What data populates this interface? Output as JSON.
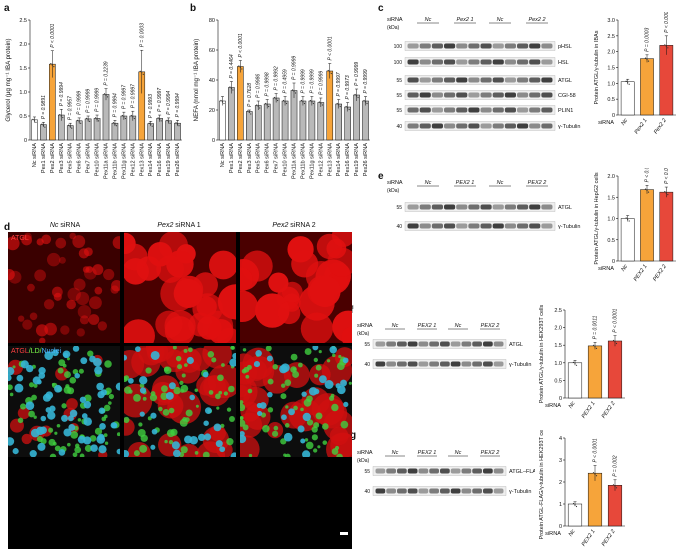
{
  "panel_letters": {
    "a": "a",
    "b": "b",
    "c": "c",
    "d": "d",
    "e": "e",
    "f": "f",
    "g": "g"
  },
  "colors": {
    "nc": "#ffffff",
    "pex": "#b9b9b9",
    "pex2": "#f6a43a",
    "pex2b": "#f2703a",
    "pex2c": "#e7483a"
  },
  "chart_data": [
    {
      "id": "a",
      "type": "bar",
      "ylabel": "Glycerol (μg mg⁻¹ IBA protein)",
      "ylim": [
        0,
        2.5
      ],
      "yticks": [
        "0",
        "0.5",
        "1.0",
        "1.5",
        "2.0",
        "2.5"
      ],
      "categories": [
        "Nc siRNA",
        "Pex1 siRNA",
        "Pex2 siRNA",
        "Pex3 siRNA",
        "Pex5 siRNA",
        "Pex6 siRNA",
        "Pex7 siRNA",
        "Pex10 siRNA",
        "Pex11a siRNA",
        "Pex11b siRNA",
        "Pex11g siRNA",
        "Pex12 siRNA",
        "Pex13 siRNA",
        "Pex14 siRNA",
        "Pex16 siRNA",
        "Pex19 siRNA",
        "Pex26 siRNA"
      ],
      "values": [
        0.42,
        0.32,
        1.58,
        0.52,
        0.3,
        0.4,
        0.44,
        0.45,
        0.95,
        0.35,
        0.5,
        0.5,
        1.42,
        0.34,
        0.45,
        0.4,
        0.35
      ],
      "errors": [
        0.06,
        0.05,
        0.28,
        0.12,
        0.05,
        0.06,
        0.06,
        0.07,
        0.12,
        0.06,
        0.08,
        0.1,
        0.45,
        0.05,
        0.07,
        0.06,
        0.06
      ],
      "pvalues": [
        "",
        "P = 0.9891",
        "P < 0.0001",
        "P = 0.9994",
        "P = 0.9957",
        "P = 0.9999",
        "P = 0.9999",
        "P = 0.9999",
        "P = 0.2239",
        "P = 0.9994",
        "P = 0.9997",
        "P = 0.9997",
        "P = 0.0003",
        "P = 0.9993",
        "P = 0.9997",
        "P = 0.9994",
        "P = 0.9994"
      ]
    },
    {
      "id": "b",
      "type": "bar",
      "ylabel": "NEFA (nmol mg⁻¹ IBA protein)",
      "ylim": [
        0,
        80
      ],
      "yticks": [
        "0",
        "20",
        "40",
        "60",
        "80"
      ],
      "categories": [
        "Nc siRNA",
        "Pex1 siRNA",
        "Pex2 siRNA",
        "Pex3 siRNA",
        "Pex5 siRNA",
        "Pex6 siRNA",
        "Pex7 siRNA",
        "Pex10 siRNA",
        "Pex11a siRNA",
        "Pex11b siRNA",
        "Pex11g siRNA",
        "Pex12 siRNA",
        "Pex13 siRNA",
        "Pex14 siRNA",
        "Pex16 siRNA",
        "Pex19 siRNA",
        "Pex26 siRNA"
      ],
      "values": [
        26,
        35,
        49,
        19,
        23,
        24,
        28,
        26,
        33,
        26,
        26,
        25,
        46,
        24,
        22,
        30,
        26
      ],
      "errors": [
        3,
        4,
        4,
        1,
        3,
        3,
        3,
        3,
        5,
        3,
        3,
        3,
        5,
        3,
        3,
        4,
        3
      ],
      "pvalues": [
        "",
        "P = 0.4464",
        "P < 0.0001",
        "P = 0.7628",
        "P = 0.9986",
        "P = 0.9998",
        "P = 0.9992",
        "P = 0.4959",
        "P = 0.9999",
        "P = 0.9999",
        "P = 0.9999",
        "P = 0.9999",
        "P < 0.0001",
        "P = 0.9997",
        "P = 0.9973",
        "P = 0.9999",
        "P = 0.9999"
      ]
    },
    {
      "id": "c",
      "type": "bar",
      "ylabel": "Protein ATGL/γ-tubulin in IBAs",
      "ylim": [
        0,
        3.0
      ],
      "yticks": [
        "0",
        "0.5",
        "1.0",
        "1.5",
        "2.0",
        "2.5",
        "3.0"
      ],
      "axis_title": "siRNA",
      "categories": [
        "Nc",
        "Pex2 1",
        "Pex2 2"
      ],
      "values": [
        1.05,
        1.78,
        2.2
      ],
      "errors": [
        0.08,
        0.12,
        0.3
      ],
      "pvalues": [
        "",
        "P = 0.0003",
        "P < 0.0001"
      ]
    },
    {
      "id": "e",
      "type": "bar",
      "ylabel": "Protein ATGL/γ-tubulin in HepG2 cells",
      "ylim": [
        0,
        2.0
      ],
      "yticks": [
        "0",
        "0.5",
        "1.0",
        "1.5",
        "2.0"
      ],
      "axis_title": "siRNA",
      "categories": [
        "Nc",
        "PEX2 1",
        "PEX2 2"
      ],
      "values": [
        1.0,
        1.68,
        1.62
      ],
      "errors": [
        0.07,
        0.1,
        0.12
      ],
      "pvalues": [
        "",
        "P < 0.0001",
        "P < 0.0001"
      ]
    },
    {
      "id": "f",
      "type": "bar",
      "ylabel": "Protein ATGL/γ-tubulin in HEK293T cells",
      "ylim": [
        0,
        2.5
      ],
      "yticks": [
        "0",
        "0.5",
        "1.0",
        "1.5",
        "2.0",
        "2.5"
      ],
      "axis_title": "siRNA",
      "categories": [
        "Nc",
        "PEX2 1",
        "PEX2 2"
      ],
      "values": [
        1.0,
        1.48,
        1.62
      ],
      "errors": [
        0.07,
        0.1,
        0.15
      ],
      "pvalues": [
        "",
        "P = 0.0011",
        "P < 0.0001"
      ]
    },
    {
      "id": "g",
      "type": "bar",
      "ylabel": "Protein ATGL-FLAG/γ-tubulin in HEK293T cells",
      "ylim": [
        0,
        4
      ],
      "yticks": [
        "0",
        "1",
        "2",
        "3",
        "4"
      ],
      "axis_title": "siRNA",
      "categories": [
        "Nc",
        "PEX2 1",
        "PEX2 2"
      ],
      "values": [
        1.0,
        2.4,
        1.85
      ],
      "errors": [
        0.1,
        0.35,
        0.25
      ],
      "pvalues": [
        "",
        "P < 0.0001",
        "P = 0.002"
      ]
    }
  ],
  "blots": {
    "c": {
      "siRNA": "siRNA",
      "kda": "(kDa)",
      "lanes": [
        "Nc",
        "Pex2 1",
        "Nc",
        "Pex2 2"
      ],
      "markers": [
        "100",
        "100",
        "55",
        "55",
        "55",
        "40"
      ],
      "bands": [
        "pHSL",
        "HSL",
        "ATGL",
        "CGI-58",
        "PLIN1",
        "γ-Tubulin"
      ]
    },
    "e": {
      "siRNA": "siRNA",
      "kda": "(kDa)",
      "lanes": [
        "Nc",
        "PEX2 1",
        "Nc",
        "PEX2 2"
      ],
      "markers": [
        "55",
        "40"
      ],
      "bands": [
        "ATGL",
        "γ-Tubulin"
      ]
    },
    "f": {
      "siRNA": "siRNA",
      "kda": "(kDa)",
      "lanes": [
        "Nc",
        "PEX2 1",
        "Nc",
        "PEX2 2"
      ],
      "markers": [
        "55",
        "40"
      ],
      "bands": [
        "ATGL",
        "γ-Tubulin"
      ]
    },
    "g": {
      "siRNA": "siRNA",
      "kda": "(kDa)",
      "lanes": [
        "Nc",
        "PEX2 1",
        "Nc",
        "PEX2 2"
      ],
      "markers": [
        "55",
        "40"
      ],
      "bands": [
        "ATGL–FLAG",
        "γ-Tubulin"
      ]
    }
  },
  "micrograph": {
    "col1_it": "Nc",
    "col1_rest": " siRNA",
    "col2_it": "Pex2",
    "col2_rest": " siRNA 1",
    "col3_it": "Pex2",
    "col3_rest": " siRNA 2",
    "row1_label": "ATGL",
    "row2_a": "ATGL",
    "row2_b": "/LD/",
    "row2_c": "Nuclei"
  }
}
